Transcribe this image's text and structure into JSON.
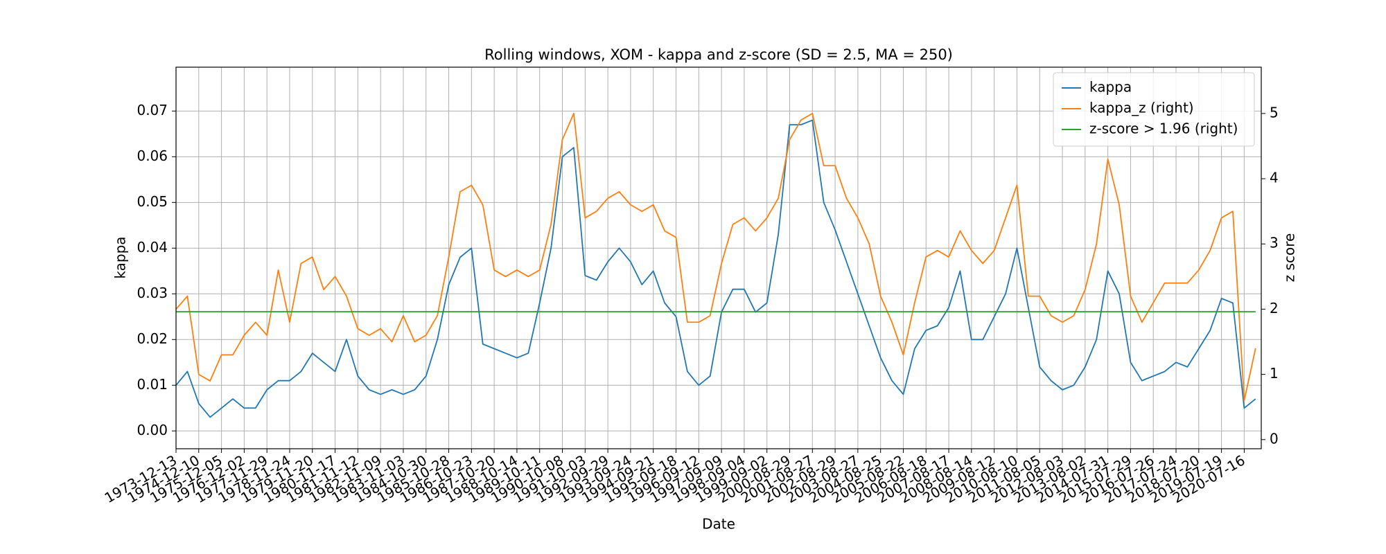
{
  "chart_data": {
    "type": "line",
    "title": "Rolling windows, XOM - kappa and z-score (SD = 2.5, MA = 250)",
    "xlabel": "Date",
    "ylabel": "kappa",
    "y2label": "z score",
    "categories": [
      "1973-12-13",
      null,
      "1974-12-10",
      null,
      "1975-12-05",
      null,
      "1976-12-02",
      null,
      "1977-11-29",
      null,
      "1978-11-24",
      null,
      "1979-11-20",
      null,
      "1980-11-17",
      null,
      "1981-11-12",
      null,
      "1982-11-09",
      null,
      "1983-11-03",
      null,
      "1984-10-30",
      null,
      "1985-10-28",
      null,
      "1986-10-23",
      null,
      "1987-10-20",
      null,
      "1988-10-14",
      null,
      "1989-10-11",
      null,
      "1990-10-08",
      null,
      "1991-10-03",
      null,
      "1992-09-29",
      null,
      "1993-09-24",
      null,
      "1994-09-21",
      null,
      "1995-09-18",
      null,
      "1996-09-12",
      null,
      "1997-09-09",
      null,
      "1998-09-04",
      null,
      "1999-09-02",
      null,
      "2000-08-29",
      null,
      "2001-08-27",
      null,
      "2002-08-29",
      null,
      "2003-08-27",
      null,
      "2004-08-25",
      null,
      "2005-08-22",
      null,
      "2006-08-18",
      null,
      "2007-08-17",
      null,
      "2008-08-14",
      null,
      "2009-08-12",
      null,
      "2010-08-10",
      null,
      "2011-08-05",
      null,
      "2012-08-03",
      null,
      "2013-08-02",
      null,
      "2014-07-31",
      null,
      "2015-07-29",
      null,
      "2016-07-26",
      null,
      "2017-07-24",
      null,
      "2018-07-20",
      null,
      "2019-07-19",
      null,
      "2020-07-16",
      null
    ],
    "series": [
      {
        "name": "kappa",
        "color": "#1f77b4",
        "axis": "y",
        "values": [
          0.01,
          0.013,
          0.006,
          0.003,
          0.005,
          0.007,
          0.005,
          0.005,
          0.009,
          0.011,
          0.011,
          0.013,
          0.017,
          0.015,
          0.013,
          0.02,
          0.012,
          0.009,
          0.008,
          0.009,
          0.008,
          0.009,
          0.012,
          0.02,
          0.032,
          0.038,
          0.04,
          0.019,
          0.018,
          0.017,
          0.016,
          0.017,
          0.028,
          0.04,
          0.06,
          0.062,
          0.034,
          0.033,
          0.037,
          0.04,
          0.037,
          0.032,
          0.035,
          0.028,
          0.025,
          0.013,
          0.01,
          0.012,
          0.026,
          0.031,
          0.031,
          0.026,
          0.028,
          0.043,
          0.067,
          0.067,
          0.068,
          0.05,
          0.044,
          0.037,
          0.03,
          0.023,
          0.016,
          0.011,
          0.008,
          0.018,
          0.022,
          0.023,
          0.027,
          0.035,
          0.02,
          0.02,
          0.025,
          0.03,
          0.04,
          0.027,
          0.014,
          0.011,
          0.009,
          0.01,
          0.014,
          0.02,
          0.035,
          0.03,
          0.015,
          0.011,
          0.012,
          0.013,
          0.015,
          0.014,
          0.018,
          0.022,
          0.029,
          0.028,
          0.005,
          0.007
        ]
      },
      {
        "name": "kappa_z (right)",
        "color": "#ff7f0e",
        "axis": "y2",
        "values": [
          2.0,
          2.2,
          1.0,
          0.9,
          1.3,
          1.3,
          1.6,
          1.8,
          1.6,
          2.6,
          1.8,
          2.7,
          2.8,
          2.3,
          2.5,
          2.2,
          1.7,
          1.6,
          1.7,
          1.5,
          1.9,
          1.5,
          1.6,
          1.9,
          2.8,
          3.8,
          3.9,
          3.6,
          2.6,
          2.5,
          2.6,
          2.5,
          2.6,
          3.3,
          4.6,
          5.0,
          3.4,
          3.5,
          3.7,
          3.8,
          3.6,
          3.5,
          3.6,
          3.2,
          3.1,
          1.8,
          1.8,
          1.9,
          2.7,
          3.3,
          3.4,
          3.2,
          3.4,
          3.7,
          4.6,
          4.9,
          5.0,
          4.2,
          4.2,
          3.7,
          3.4,
          3.0,
          2.2,
          1.8,
          1.3,
          2.1,
          2.8,
          2.9,
          2.8,
          3.2,
          2.9,
          2.7,
          2.9,
          3.4,
          3.9,
          2.2,
          2.2,
          1.9,
          1.8,
          1.9,
          2.3,
          3.0,
          4.3,
          3.6,
          2.2,
          1.8,
          2.1,
          2.4,
          2.4,
          2.4,
          2.6,
          2.9,
          3.4,
          3.5,
          0.6,
          1.4
        ]
      },
      {
        "name": "z-score > 1.96 (right)",
        "color": "#2ca02c",
        "axis": "y2",
        "values": [
          1.96,
          1.96,
          1.96,
          1.96,
          1.96,
          1.96,
          1.96,
          1.96,
          1.96,
          1.96,
          1.96,
          1.96,
          1.96,
          1.96,
          1.96,
          1.96,
          1.96,
          1.96,
          1.96,
          1.96,
          1.96,
          1.96,
          1.96,
          1.96,
          1.96,
          1.96,
          1.96,
          1.96,
          1.96,
          1.96,
          1.96,
          1.96,
          1.96,
          1.96,
          1.96,
          1.96,
          1.96,
          1.96,
          1.96,
          1.96,
          1.96,
          1.96,
          1.96,
          1.96,
          1.96,
          1.96,
          1.96,
          1.96,
          1.96,
          1.96,
          1.96,
          1.96,
          1.96,
          1.96,
          1.96,
          1.96,
          1.96,
          1.96,
          1.96,
          1.96,
          1.96,
          1.96,
          1.96,
          1.96,
          1.96,
          1.96,
          1.96,
          1.96,
          1.96,
          1.96,
          1.96,
          1.96,
          1.96,
          1.96,
          1.96,
          1.96,
          1.96,
          1.96,
          1.96,
          1.96,
          1.96,
          1.96,
          1.96,
          1.96,
          1.96,
          1.96,
          1.96,
          1.96,
          1.96,
          1.96,
          1.96,
          1.96,
          1.96,
          1.96,
          1.96,
          1.96
        ]
      }
    ],
    "ylim": [
      -0.0039,
      0.0796
    ],
    "yticks": [
      {
        "value": 0,
        "label": "0.00"
      },
      0.01,
      0.02,
      0.03,
      0.04,
      0.05,
      0.06,
      0.07
    ],
    "y2lim": [
      -0.14,
      5.71
    ],
    "y2ticks": [
      0,
      1,
      2,
      3,
      4,
      5
    ],
    "grid": true,
    "legend": "upper right"
  }
}
